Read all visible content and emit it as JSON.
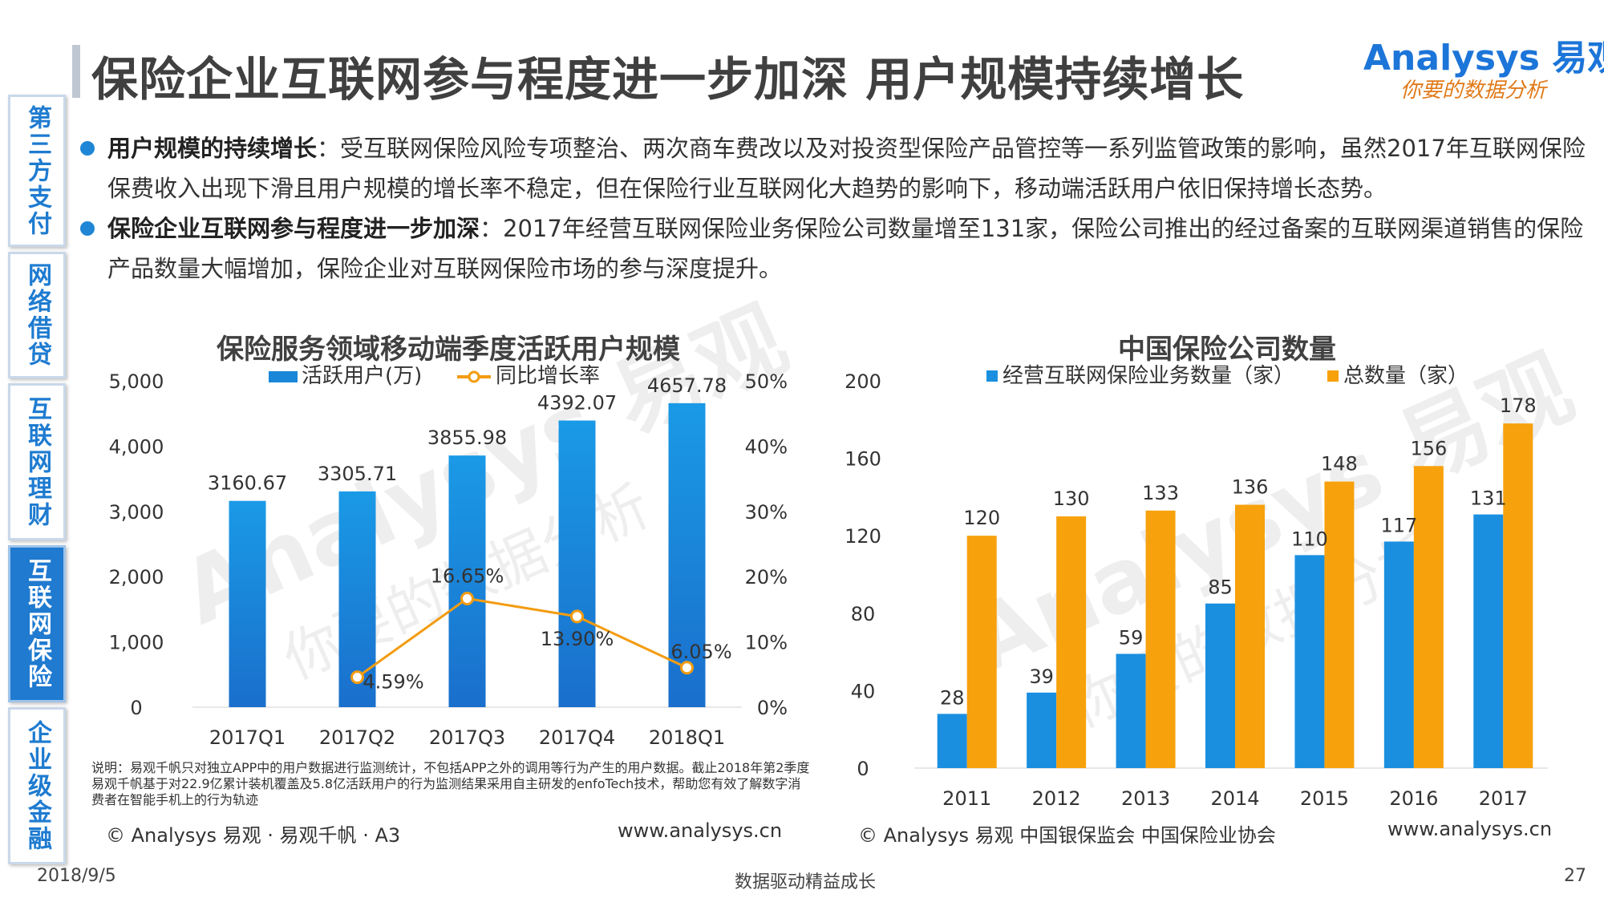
{
  "header": {
    "title": "保险企业互联网参与程度进一步加深 用户规模持续增长",
    "logo_top": "Analysys 易观",
    "logo_bottom": "你要的数据分析"
  },
  "sidebar": {
    "items": [
      {
        "label": "第三方支付",
        "active": false
      },
      {
        "label": "网络借贷",
        "active": false
      },
      {
        "label": "互联网理财",
        "active": false
      },
      {
        "label": "互联网保险",
        "active": true
      },
      {
        "label": "企业级金融",
        "active": false
      }
    ]
  },
  "bullets": [
    {
      "bold": "用户规模的持续增长",
      "text": "：受互联网保险风险专项整治、两次商车费改以及对投资型保险产品管控等一系列监管政策的影响，虽然2017年互联网保险保费收入出现下滑且用户规模的增长率不稳定，但在保险行业互联网化大趋势的影响下，移动端活跃用户依旧保持增长态势。"
    },
    {
      "bold": "保险企业互联网参与程度进一步加深",
      "text": "：2017年经营互联网保险业务保险公司数量增至131家，保险公司推出的经过备案的互联网渠道销售的保险产品数量大幅增加，保险企业对互联网保险市场的参与深度提升。"
    }
  ],
  "chart_data": [
    {
      "type": "bar",
      "title": "保险服务领域移动端季度活跃用户规模",
      "categories": [
        "2017Q1",
        "2017Q2",
        "2017Q3",
        "2017Q4",
        "2018Q1"
      ],
      "series": [
        {
          "name": "活跃用户(万)",
          "type": "bar",
          "axis": "left",
          "values": [
            3160.67,
            3305.71,
            3855.98,
            4392.07,
            4657.78
          ],
          "labels": [
            "3160.67",
            "3305.71",
            "3855.98",
            "4392.07",
            "4657.78"
          ]
        },
        {
          "name": "同比增长率",
          "type": "line",
          "axis": "right",
          "values": [
            null,
            4.59,
            16.65,
            13.9,
            6.05
          ],
          "labels": [
            "",
            "4.59%",
            "16.65%",
            "13.90%",
            "6.05%"
          ]
        }
      ],
      "ylim": [
        0,
        5000
      ],
      "yticks": [
        "0",
        "1,000",
        "2,000",
        "3,000",
        "4,000",
        "5,000"
      ],
      "y2lim": [
        0,
        50
      ],
      "y2ticks": [
        "0%",
        "10%",
        "20%",
        "30%",
        "40%",
        "50%"
      ],
      "legend": "top",
      "grid": false,
      "colors": {
        "bar": "#1a86d8",
        "line": "#f39c12"
      }
    },
    {
      "type": "bar",
      "title": "中国保险公司数量",
      "categories": [
        "2011",
        "2012",
        "2013",
        "2014",
        "2015",
        "2016",
        "2017"
      ],
      "series": [
        {
          "name": "经营互联网保险业务数量（家）",
          "values": [
            28,
            39,
            59,
            85,
            110,
            117,
            131
          ]
        },
        {
          "name": "总数量（家）",
          "values": [
            120,
            130,
            133,
            136,
            148,
            156,
            178
          ]
        }
      ],
      "ylim": [
        0,
        200
      ],
      "yticks": [
        "0",
        "40",
        "80",
        "120",
        "160",
        "200"
      ],
      "legend": "top",
      "grid": false,
      "colors": {
        "s1": "#1a8fe0",
        "s2": "#f7a10c"
      }
    }
  ],
  "left_chart": {
    "note": "说明：易观千帆只对独立APP中的用户数据进行监测统计，不包括APP之外的调用等行为产生的用户数据。截止2018年第2季度易观千帆基于对22.9亿累计装机覆盖及5.8亿活跃用户的行为监测结果采用自主研发的enfoTech技术，帮助您有效了解数字消费者在智能手机上的行为轨迹",
    "source": "© Analysys 易观 · 易观千帆 · A3",
    "url": "www.analysys.cn"
  },
  "right_chart": {
    "source": "© Analysys 易观 中国银保监会 中国保险业协会",
    "url": "www.analysys.cn"
  },
  "footer": {
    "date": "2018/9/5",
    "slogan": "数据驱动精益成长",
    "page": "27"
  },
  "watermark": {
    "brand": "Analysys 易观",
    "tagline": "你要的数据分析"
  }
}
